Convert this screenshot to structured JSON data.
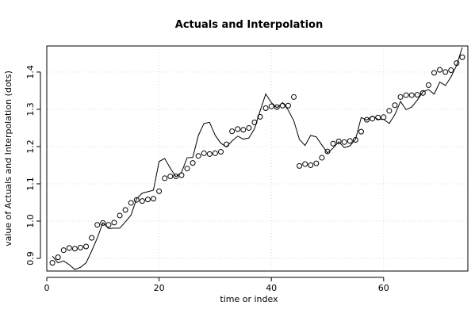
{
  "chart_data": {
    "type": "line",
    "title": "Actuals and Interpolation",
    "xlabel": "time or index",
    "ylabel": "value of Actuals and Interpolation (dots)",
    "xlim": [
      0,
      75
    ],
    "ylim": [
      0.866,
      1.47
    ],
    "x_ticks": [
      0,
      20,
      40,
      60
    ],
    "y_ticks": [
      0.9,
      1.0,
      1.1,
      1.2,
      1.3,
      1.4
    ],
    "grid": true,
    "series": [
      {
        "style": "line",
        "x": [
          1,
          2,
          3,
          4,
          5,
          6,
          7,
          8,
          9,
          10,
          11,
          12,
          13,
          14,
          15,
          16,
          17,
          18,
          19,
          20,
          21,
          22,
          23,
          24,
          25,
          26,
          27,
          28,
          29,
          30,
          31,
          32,
          33,
          34,
          35,
          36,
          37,
          38,
          39,
          40,
          41,
          42,
          43,
          44,
          45,
          46,
          47,
          48,
          49,
          50,
          51,
          52,
          53,
          54,
          55,
          56,
          57,
          58,
          59,
          60,
          61,
          62,
          63,
          64,
          65,
          66,
          67,
          68,
          69,
          70,
          71,
          72,
          73,
          74
        ],
        "values": [
          0.906,
          0.888,
          0.893,
          0.883,
          0.87,
          0.876,
          0.888,
          0.92,
          0.955,
          0.996,
          0.98,
          0.981,
          0.981,
          0.998,
          1.016,
          1.06,
          1.075,
          1.079,
          1.083,
          1.16,
          1.168,
          1.142,
          1.119,
          1.131,
          1.17,
          1.171,
          1.23,
          1.262,
          1.265,
          1.23,
          1.209,
          1.199,
          1.215,
          1.228,
          1.22,
          1.223,
          1.248,
          1.296,
          1.341,
          1.318,
          1.304,
          1.318,
          1.298,
          1.269,
          1.219,
          1.203,
          1.23,
          1.226,
          1.204,
          1.183,
          1.196,
          1.213,
          1.197,
          1.202,
          1.22,
          1.278,
          1.271,
          1.282,
          1.273,
          1.273,
          1.262,
          1.286,
          1.321,
          1.299,
          1.306,
          1.325,
          1.347,
          1.353,
          1.341,
          1.373,
          1.364,
          1.387,
          1.418,
          1.466
        ]
      },
      {
        "style": "points",
        "x": [
          1,
          2,
          3,
          4,
          5,
          6,
          7,
          8,
          9,
          10,
          11,
          12,
          13,
          14,
          15,
          16,
          17,
          18,
          19,
          20,
          21,
          22,
          23,
          24,
          25,
          26,
          27,
          28,
          29,
          30,
          31,
          32,
          33,
          34,
          35,
          36,
          37,
          38,
          39,
          40,
          41,
          42,
          43,
          44,
          45,
          46,
          47,
          48,
          49,
          50,
          51,
          52,
          53,
          54,
          55,
          56,
          57,
          58,
          59,
          60,
          61,
          62,
          63,
          64,
          65,
          66,
          67,
          68,
          69,
          70,
          71,
          72,
          73,
          74
        ],
        "values": [
          0.888,
          0.903,
          0.922,
          0.928,
          0.926,
          0.929,
          0.932,
          0.955,
          0.99,
          0.995,
          0.99,
          0.996,
          1.015,
          1.03,
          1.049,
          1.057,
          1.054,
          1.058,
          1.06,
          1.08,
          1.115,
          1.12,
          1.12,
          1.123,
          1.141,
          1.156,
          1.175,
          1.182,
          1.18,
          1.182,
          1.186,
          1.206,
          1.241,
          1.247,
          1.245,
          1.25,
          1.265,
          1.28,
          1.303,
          1.308,
          1.306,
          1.31,
          1.31,
          1.333,
          1.148,
          1.153,
          1.15,
          1.155,
          1.17,
          1.187,
          1.208,
          1.214,
          1.212,
          1.215,
          1.218,
          1.24,
          1.272,
          1.275,
          1.278,
          1.279,
          1.296,
          1.311,
          1.333,
          1.338,
          1.338,
          1.339,
          1.344,
          1.365,
          1.398,
          1.406,
          1.4,
          1.405,
          1.424,
          1.44
        ]
      }
    ]
  }
}
